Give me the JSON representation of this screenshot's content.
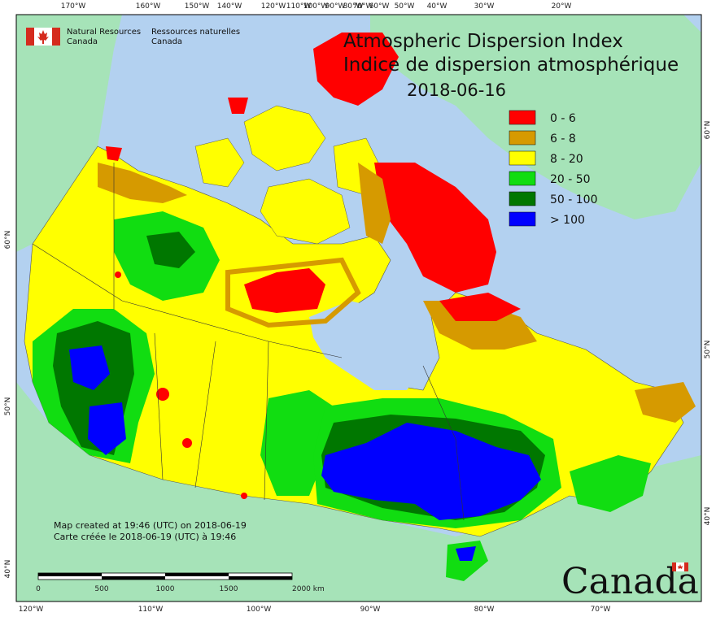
{
  "agency": {
    "english": [
      "Natural Resources",
      "Canada"
    ],
    "french": [
      "Ressources naturelles",
      "Canada"
    ]
  },
  "title": {
    "line1": "Atmospheric Dispersion Index",
    "line2": "Indice de dispersion atmosphérique",
    "date": "2018-06-16"
  },
  "legend": [
    {
      "label": "0 - 6",
      "color": "#ff0000"
    },
    {
      "label": "6 - 8",
      "color": "#d69a00"
    },
    {
      "label": "8 - 20",
      "color": "#ffff00"
    },
    {
      "label": "20 - 50",
      "color": "#11dd11"
    },
    {
      "label": "50 - 100",
      "color": "#007700"
    },
    {
      "label": "> 100",
      "color": "#0000ff"
    }
  ],
  "top_ticks": [
    "170°W",
    "160°W",
    "150°W",
    "140°W",
    "120°W",
    "110°W",
    "100°W",
    "90°W",
    "80°W",
    "70°W",
    "60°W",
    "50°W",
    "40°W",
    "30°W",
    "20°W"
  ],
  "bottom_ticks": [
    "120°W",
    "110°W",
    "100°W",
    "90°W",
    "80°W",
    "70°W"
  ],
  "left_ticks": [
    "60°N",
    "50°N",
    "40°N"
  ],
  "right_ticks": [
    "60°N",
    "50°N",
    "40°N"
  ],
  "credit": {
    "line1": "Map created at 19:46 (UTC) on 2018-06-19",
    "line2": "Carte créée le 2018-06-19 (UTC) à 19:46"
  },
  "scale_bar": {
    "labels": [
      "0",
      "500",
      "1000",
      "1500",
      "2000 km"
    ]
  },
  "wordmark": "Canada",
  "colors": {
    "ocean": "#b3d1f0",
    "land_outside": "#a6e3b8"
  }
}
